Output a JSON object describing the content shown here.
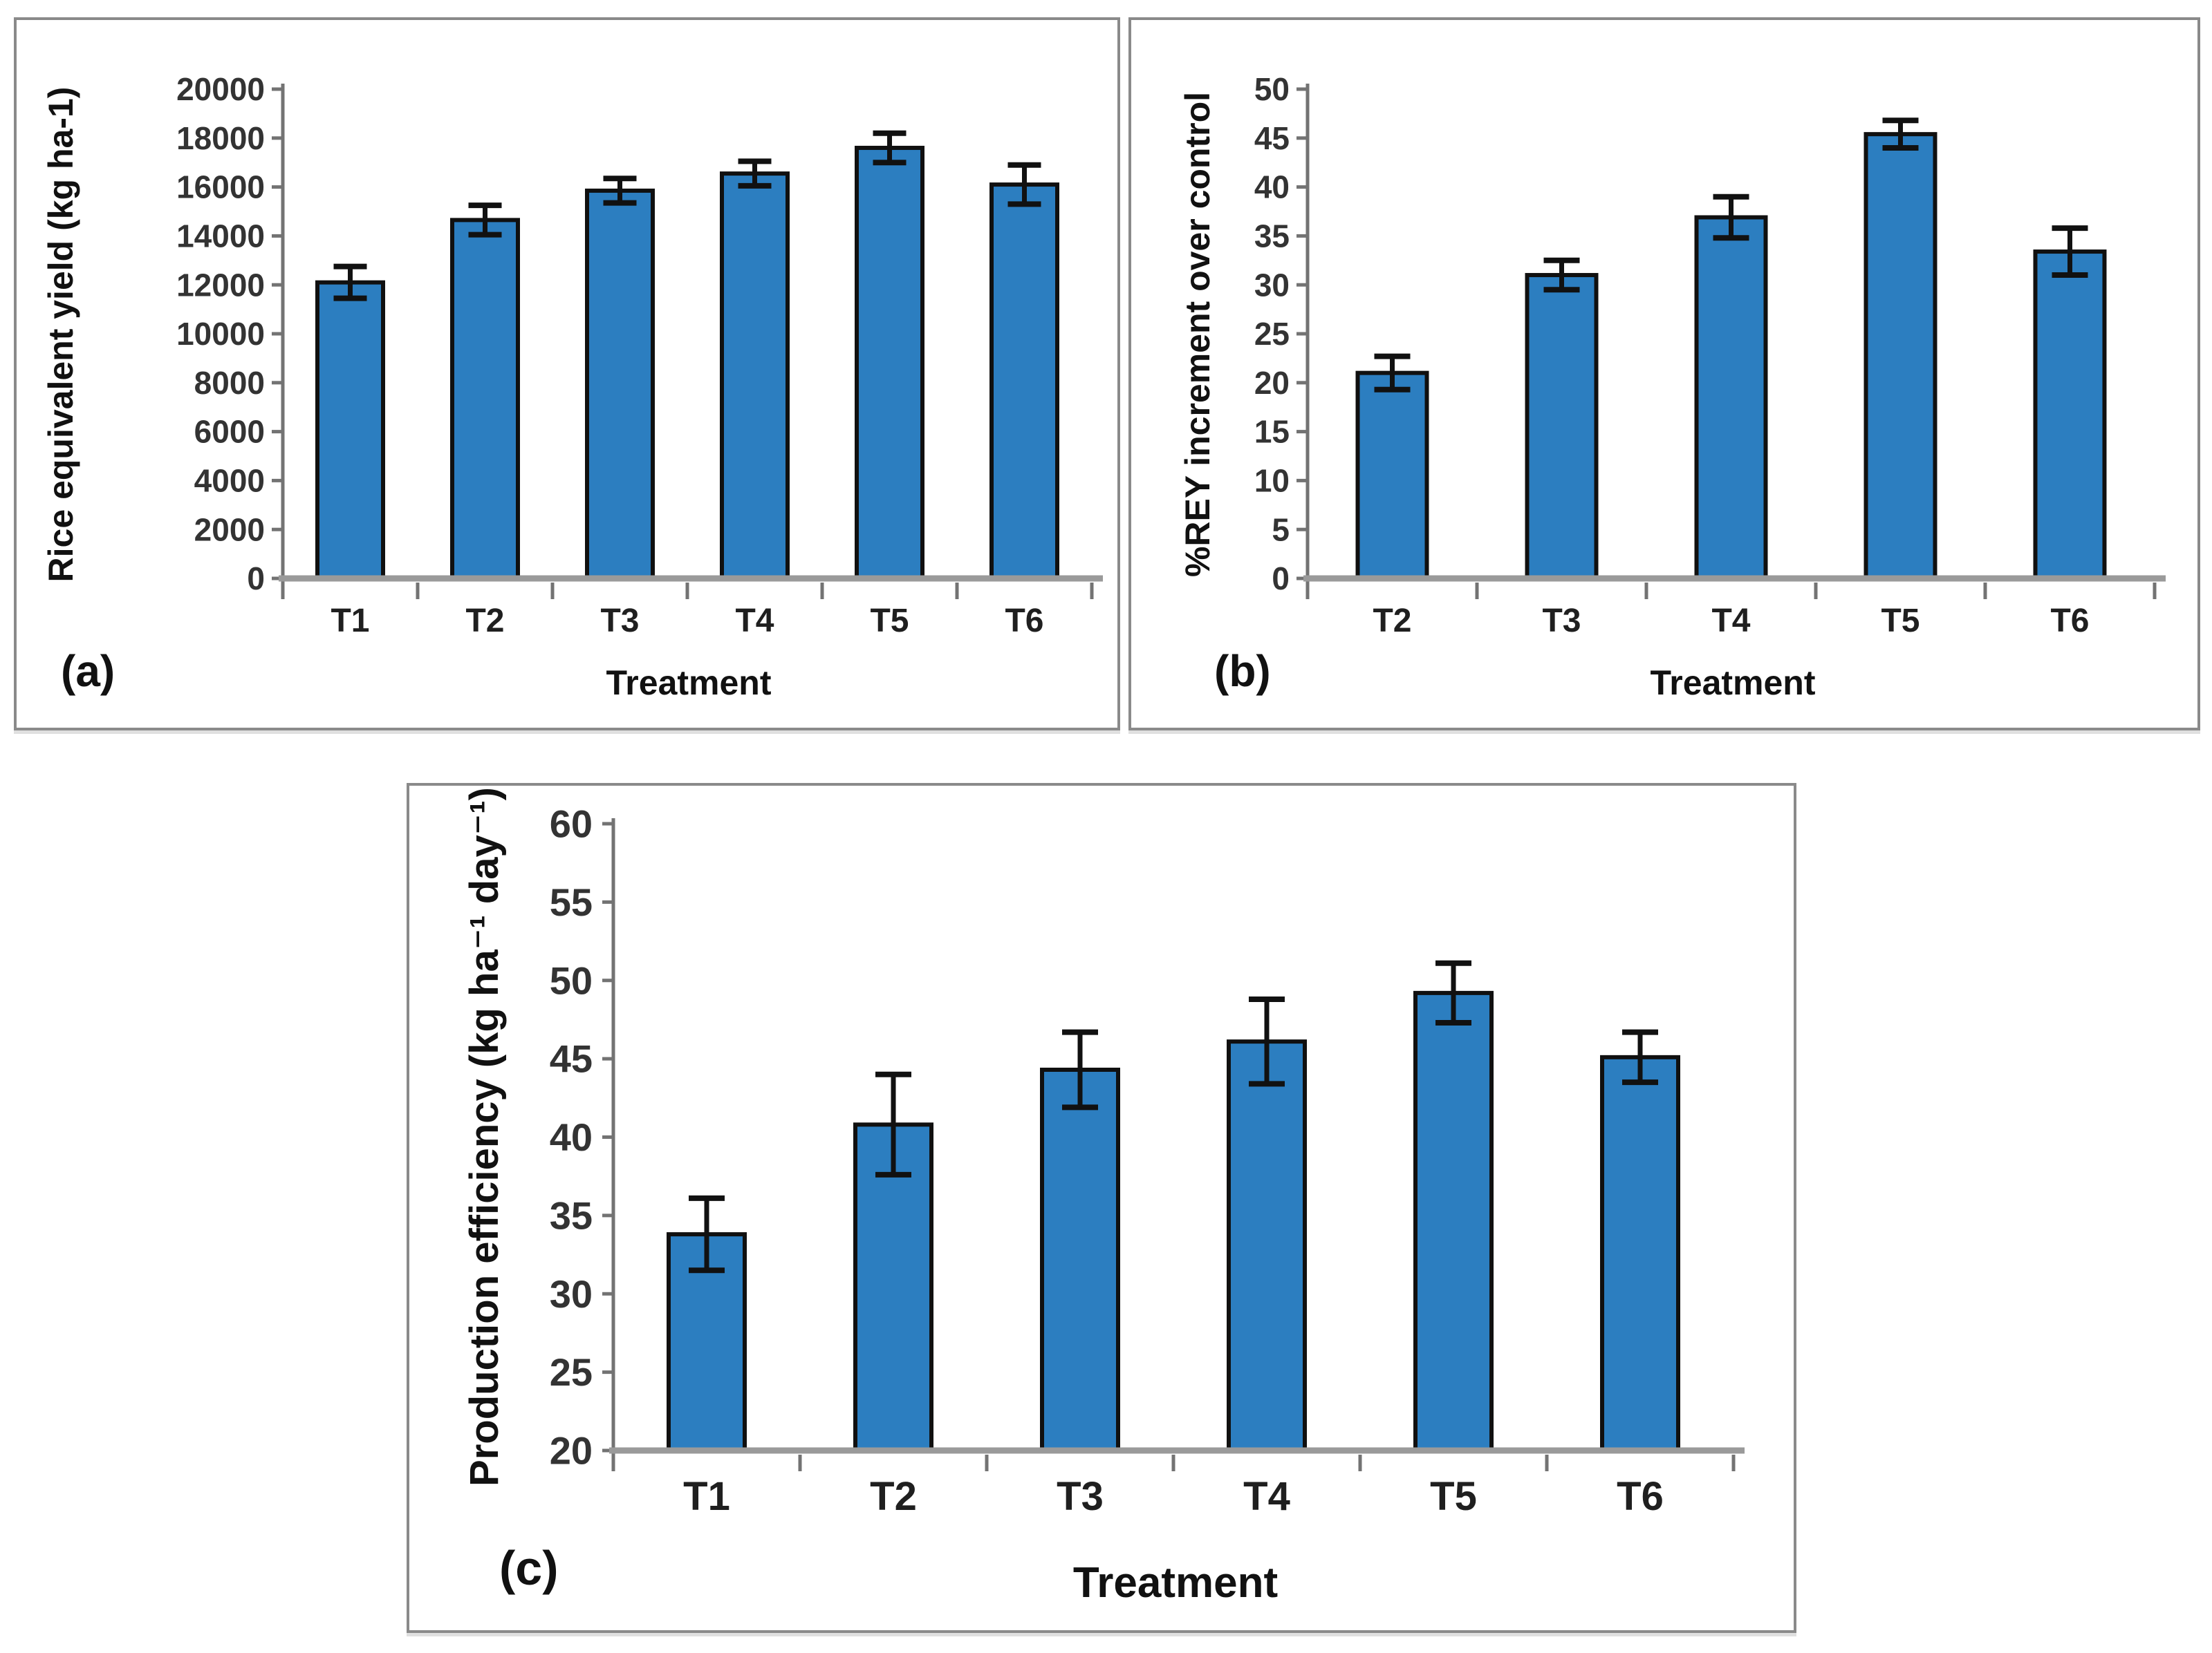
{
  "colors": {
    "bar_fill": "#2C7EC0",
    "bar_border": "#101010",
    "error_bar": "#111111",
    "axis_line": "#737373",
    "baseline": "#9a9a9a",
    "tick_text": "#333333",
    "category_text": "#1f1f1f",
    "panel_border": "#8a8a8a"
  },
  "chart_data": [
    {
      "type": "bar",
      "panel_letter": "(a)",
      "ylabel": "Rice equivalent yield (kg ha-1)",
      "xlabel": "Treatment",
      "categories": [
        "T1",
        "T2",
        "T3",
        "T4",
        "T5",
        "T6"
      ],
      "values": [
        12100,
        14650,
        15850,
        16550,
        17600,
        16100
      ],
      "errors": [
        650,
        600,
        500,
        500,
        600,
        800
      ],
      "ylim": [
        0,
        20000
      ],
      "ytick_step": 2000,
      "grid": false,
      "legend": "none"
    },
    {
      "type": "bar",
      "panel_letter": "(b)",
      "ylabel": "%REY increment over control",
      "xlabel": "Treatment",
      "categories": [
        "T2",
        "T3",
        "T4",
        "T5",
        "T6"
      ],
      "values": [
        21,
        31,
        36.9,
        45.4,
        33.4
      ],
      "errors": [
        1.7,
        1.5,
        2.1,
        1.4,
        2.4
      ],
      "ylim": [
        0,
        50
      ],
      "ytick_step": 5,
      "grid": false,
      "legend": "none"
    },
    {
      "type": "bar",
      "panel_letter": "(c)",
      "ylabel": "Production efficiency (kg ha⁻¹ day⁻¹)",
      "xlabel": "Treatment",
      "categories": [
        "T1",
        "T2",
        "T3",
        "T4",
        "T5",
        "T6"
      ],
      "values": [
        33.8,
        40.8,
        44.3,
        46.1,
        49.2,
        45.1
      ],
      "errors": [
        2.3,
        3.2,
        2.4,
        2.7,
        1.9,
        1.6
      ],
      "ylim": [
        20,
        60
      ],
      "ytick_step": 5,
      "grid": false,
      "legend": "none"
    }
  ]
}
